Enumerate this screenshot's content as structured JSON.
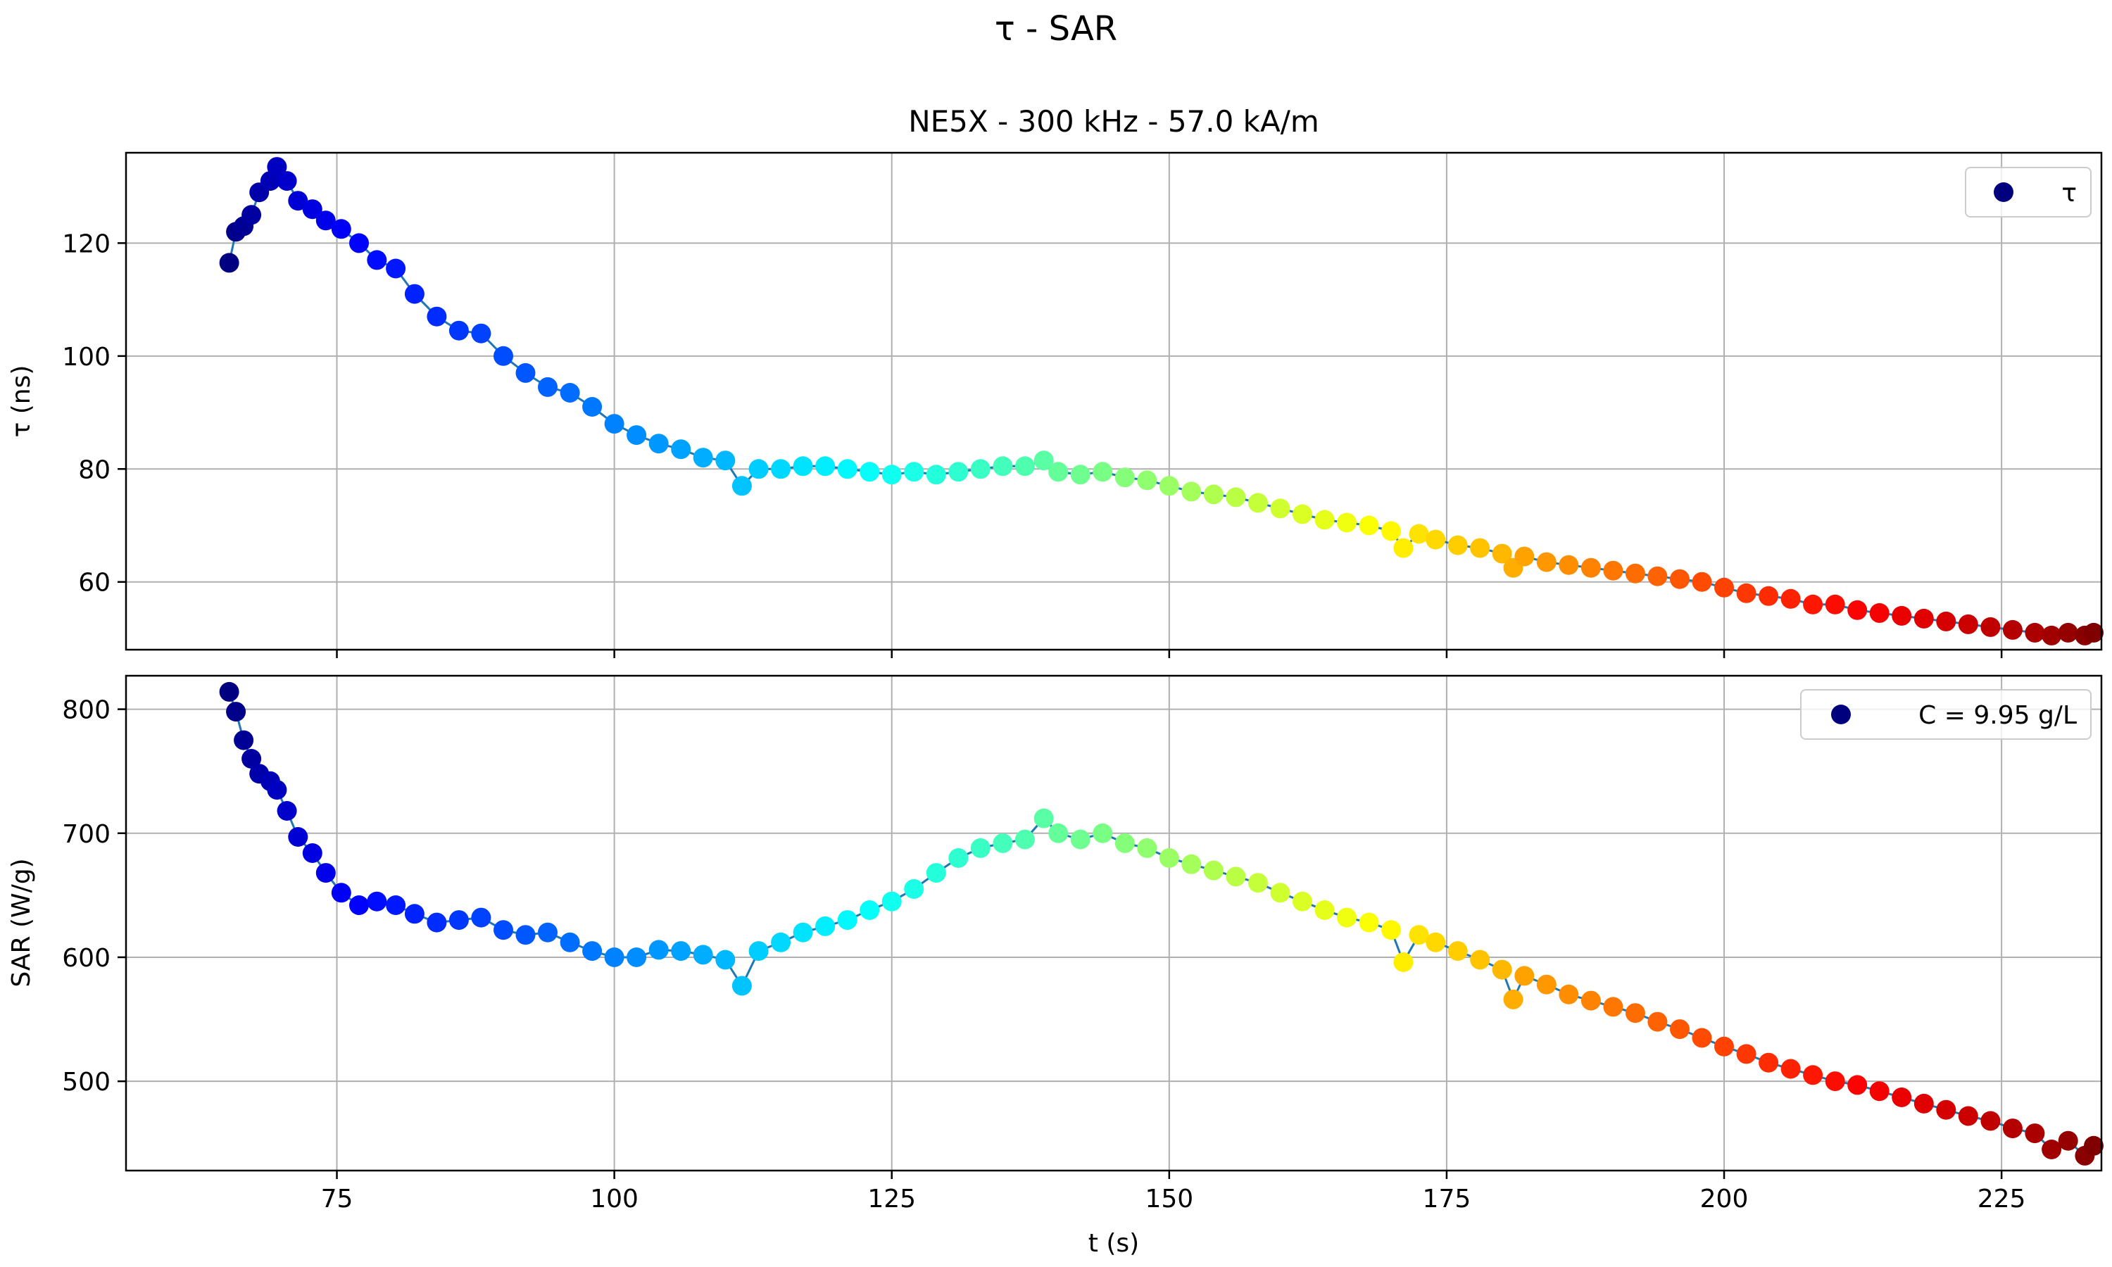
{
  "figure": {
    "suptitle": "τ - SAR"
  },
  "chart_data": [
    {
      "type": "scatter",
      "title": "NE5X - 300 kHz - 57.0 kA/m",
      "xlabel": "",
      "ylabel": "τ (ns)",
      "xlim": [
        56,
        234
      ],
      "ylim": [
        48,
        136
      ],
      "xticks": [
        75,
        100,
        125,
        150,
        175,
        200,
        225
      ],
      "xticklabels_visible": false,
      "yticks": [
        60,
        80,
        100,
        120
      ],
      "grid": true,
      "legend": {
        "label": "τ",
        "placement": "top-right",
        "marker_color": "#00007f"
      },
      "colormap": "jet",
      "connecting_line_color": "#1f77b4",
      "series": [
        {
          "name": "τ",
          "x": [
            65.3,
            65.9,
            66.6,
            67.3,
            68.0,
            69.0,
            69.6,
            70.5,
            71.5,
            72.8,
            74.0,
            75.4,
            77.0,
            78.6,
            80.3,
            82.0,
            84.0,
            86.0,
            88.0,
            90.0,
            92.0,
            94.0,
            96.0,
            98.0,
            100.0,
            102.0,
            104.0,
            106.0,
            108.0,
            110.0,
            111.5,
            113.0,
            115.0,
            117.0,
            119.0,
            121.0,
            123.0,
            125.0,
            127.0,
            129.0,
            131.0,
            133.0,
            135.0,
            137.0,
            138.7,
            140.0,
            142.0,
            144.0,
            146.0,
            148.0,
            150.0,
            152.0,
            154.0,
            156.0,
            158.0,
            160.0,
            162.0,
            164.0,
            166.0,
            168.0,
            170.0,
            171.1,
            172.5,
            174.0,
            176.0,
            178.0,
            180.0,
            181.0,
            182.0,
            184.0,
            186.0,
            188.0,
            190.0,
            192.0,
            194.0,
            196.0,
            198.0,
            200.0,
            202.0,
            204.0,
            206.0,
            208.0,
            210.0,
            212.0,
            214.0,
            216.0,
            218.0,
            220.0,
            222.0,
            224.0,
            226.0,
            228.0,
            229.5,
            231.0,
            232.5,
            233.3
          ],
          "values": [
            116.5,
            122,
            123,
            125,
            129,
            131,
            133.5,
            131,
            127.5,
            126,
            124,
            122.5,
            120,
            117,
            115.5,
            111,
            107,
            104.5,
            104,
            100,
            97,
            94.5,
            93.5,
            91,
            88,
            86,
            84.5,
            83.5,
            82,
            81.5,
            77,
            80,
            80,
            80.5,
            80.5,
            80,
            79.5,
            79,
            79.5,
            79,
            79.5,
            80,
            80.5,
            80.5,
            81.5,
            79.5,
            79,
            79.5,
            78.5,
            78,
            77,
            76,
            75.5,
            75,
            74,
            73,
            72,
            71,
            70.5,
            70,
            69,
            66,
            68.5,
            67.5,
            66.5,
            66,
            65,
            62.5,
            64.5,
            63.5,
            63,
            62.5,
            62,
            61.5,
            61,
            60.5,
            60,
            59,
            58,
            57.5,
            57,
            56,
            56,
            55,
            54.5,
            54,
            53.5,
            53,
            52.5,
            52,
            51.5,
            51,
            50.5,
            51,
            50.5,
            51
          ]
        }
      ]
    },
    {
      "type": "scatter",
      "title": "",
      "xlabel": "t (s)",
      "ylabel": "SAR (W/g)",
      "xlim": [
        56,
        234
      ],
      "ylim": [
        428,
        827
      ],
      "xticks": [
        75,
        100,
        125,
        150,
        175,
        200,
        225
      ],
      "yticks": [
        500,
        600,
        700,
        800
      ],
      "grid": true,
      "legend": {
        "label": "C = 9.95 g/L",
        "placement": "top-right",
        "marker_color": "#00007f"
      },
      "colormap": "jet",
      "connecting_line_color": "#1f77b4",
      "series": [
        {
          "name": "C = 9.95 g/L",
          "x": [
            65.3,
            65.9,
            66.6,
            67.3,
            68.0,
            69.0,
            69.6,
            70.5,
            71.5,
            72.8,
            74.0,
            75.4,
            77.0,
            78.6,
            80.3,
            82.0,
            84.0,
            86.0,
            88.0,
            90.0,
            92.0,
            94.0,
            96.0,
            98.0,
            100.0,
            102.0,
            104.0,
            106.0,
            108.0,
            110.0,
            111.5,
            113.0,
            115.0,
            117.0,
            119.0,
            121.0,
            123.0,
            125.0,
            127.0,
            129.0,
            131.0,
            133.0,
            135.0,
            137.0,
            138.7,
            140.0,
            142.0,
            144.0,
            146.0,
            148.0,
            150.0,
            152.0,
            154.0,
            156.0,
            158.0,
            160.0,
            162.0,
            164.0,
            166.0,
            168.0,
            170.0,
            171.1,
            172.5,
            174.0,
            176.0,
            178.0,
            180.0,
            181.0,
            182.0,
            184.0,
            186.0,
            188.0,
            190.0,
            192.0,
            194.0,
            196.0,
            198.0,
            200.0,
            202.0,
            204.0,
            206.0,
            208.0,
            210.0,
            212.0,
            214.0,
            216.0,
            218.0,
            220.0,
            222.0,
            224.0,
            226.0,
            228.0,
            229.5,
            231.0,
            232.5,
            233.3
          ],
          "values": [
            814,
            798,
            775,
            760,
            748,
            742,
            735,
            718,
            697,
            684,
            668,
            652,
            642,
            645,
            642,
            635,
            628,
            630,
            632,
            622,
            618,
            620,
            612,
            605,
            600,
            600,
            606,
            605,
            602,
            598,
            577,
            605,
            612,
            620,
            625,
            630,
            638,
            645,
            655,
            668,
            680,
            688,
            692,
            695,
            712,
            700,
            695,
            700,
            692,
            688,
            680,
            675,
            670,
            665,
            660,
            652,
            645,
            638,
            632,
            628,
            622,
            596,
            618,
            612,
            605,
            598,
            590,
            566,
            585,
            578,
            570,
            565,
            560,
            555,
            548,
            542,
            535,
            528,
            522,
            515,
            510,
            505,
            500,
            497,
            492,
            487,
            482,
            477,
            472,
            468,
            462,
            458,
            445,
            452,
            440,
            448
          ]
        }
      ]
    }
  ]
}
